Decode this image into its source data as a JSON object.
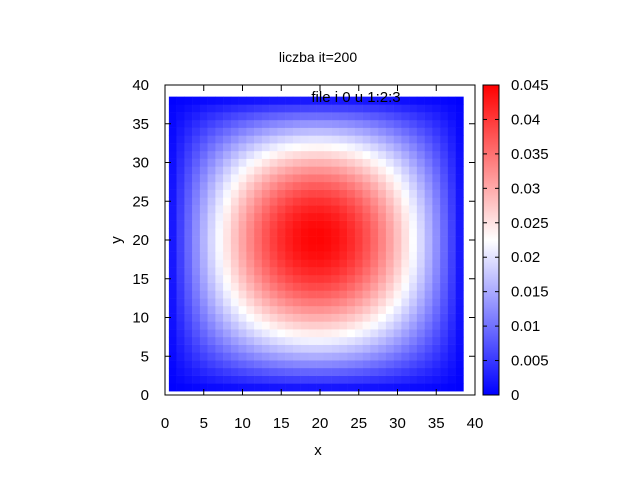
{
  "chart_data": {
    "type": "heatmap",
    "title": "liczba it=200",
    "xlabel": "x",
    "ylabel": "y",
    "legend_key": "file i 0 u 1:2:3",
    "xlim": [
      0,
      40
    ],
    "ylim": [
      0,
      40
    ],
    "xticks": [
      0,
      5,
      10,
      15,
      20,
      25,
      30,
      35,
      40
    ],
    "yticks": [
      0,
      5,
      10,
      15,
      20,
      25,
      30,
      35,
      40
    ],
    "grid": {
      "x_start": 1,
      "x_end": 38,
      "y_start": 1,
      "y_end": 38,
      "step": 1
    },
    "field": {
      "description_shape": "smooth single hump, max near center, decreasing to 0 at edges",
      "peak_value": 0.045,
      "peak_x": 20,
      "peak_y": 23,
      "edge_value": 0
    },
    "colorbar": {
      "min": 0,
      "max": 0.045,
      "ticks": [
        0,
        0.005,
        0.01,
        0.015,
        0.02,
        0.025,
        0.03,
        0.035,
        0.04,
        0.045
      ],
      "tick_labels": [
        "0",
        "0.005",
        "0.01",
        "0.015",
        "0.02",
        "0.025",
        "0.03",
        "0.035",
        "0.04",
        "0.045"
      ],
      "colors": {
        "low": "#0000ff",
        "mid": "#ffffff",
        "high": "#ff0000"
      }
    }
  }
}
